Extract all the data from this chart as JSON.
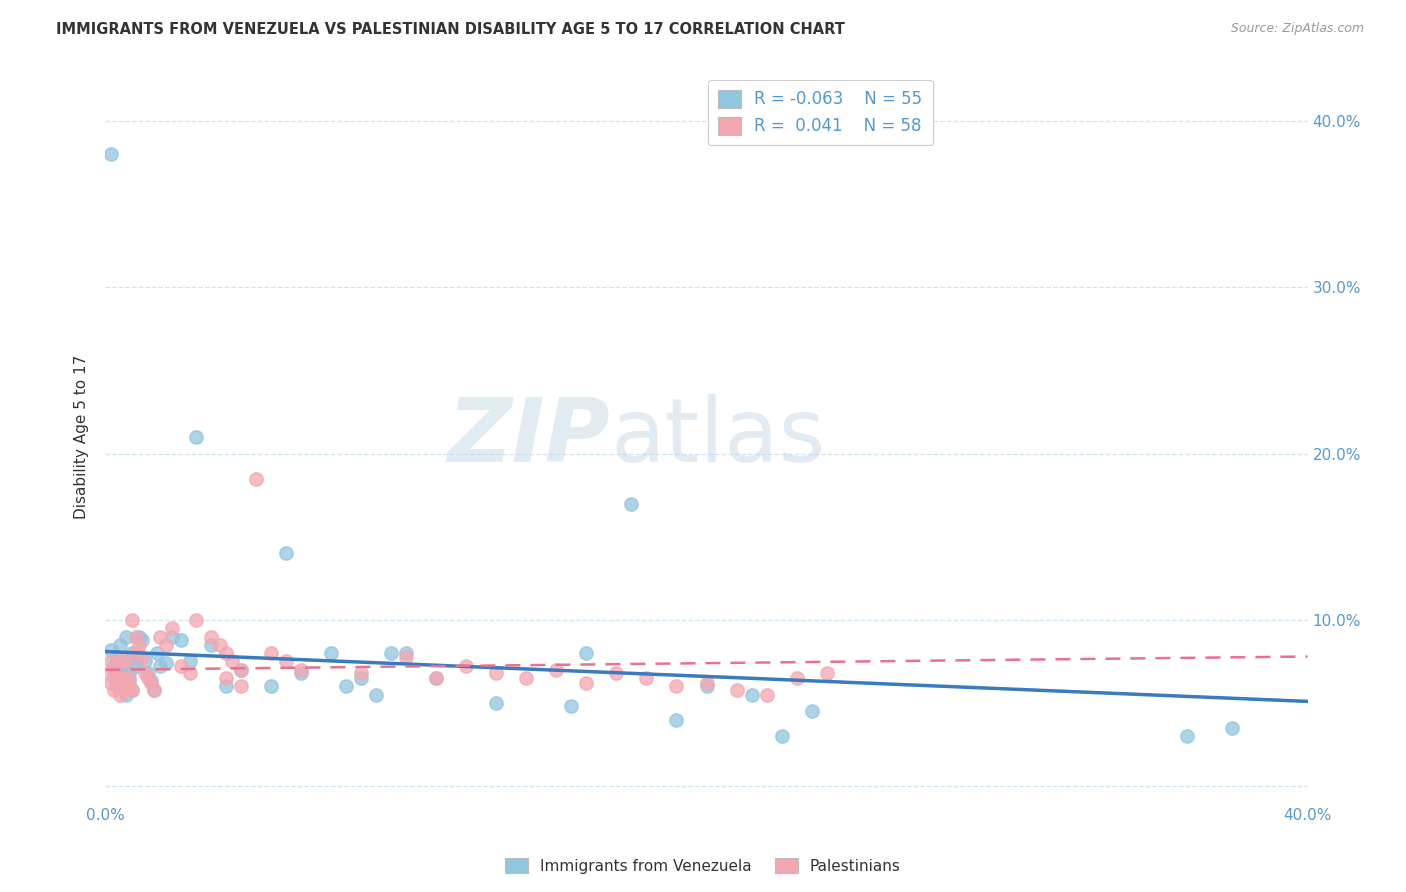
{
  "title": "IMMIGRANTS FROM VENEZUELA VS PALESTINIAN DISABILITY AGE 5 TO 17 CORRELATION CHART",
  "source": "Source: ZipAtlas.com",
  "ylabel": "Disability Age 5 to 17",
  "xlim": [
    0.0,
    0.4
  ],
  "ylim": [
    -0.01,
    0.43
  ],
  "color_blue": "#92c5de",
  "color_pink": "#f4a6b0",
  "trend_blue": "#3a7abf",
  "trend_pink": "#e87090",
  "watermark_zip": "ZIP",
  "watermark_atlas": "atlas",
  "venezuela_x": [
    0.0018,
    0.002,
    0.003,
    0.003,
    0.004,
    0.004,
    0.005,
    0.005,
    0.006,
    0.006,
    0.007,
    0.007,
    0.008,
    0.008,
    0.009,
    0.009,
    0.01,
    0.01,
    0.011,
    0.012,
    0.013,
    0.014,
    0.015,
    0.016,
    0.017,
    0.018,
    0.02,
    0.022,
    0.025,
    0.028,
    0.03,
    0.035,
    0.04,
    0.045,
    0.055,
    0.06,
    0.065,
    0.075,
    0.08,
    0.085,
    0.09,
    0.095,
    0.1,
    0.11,
    0.13,
    0.155,
    0.16,
    0.175,
    0.19,
    0.2,
    0.215,
    0.225,
    0.235,
    0.36,
    0.375
  ],
  "venezuela_y": [
    0.38,
    0.082,
    0.072,
    0.065,
    0.078,
    0.06,
    0.085,
    0.071,
    0.067,
    0.073,
    0.055,
    0.09,
    0.068,
    0.063,
    0.058,
    0.08,
    0.072,
    0.074,
    0.09,
    0.088,
    0.075,
    0.068,
    0.063,
    0.058,
    0.08,
    0.072,
    0.074,
    0.09,
    0.088,
    0.075,
    0.21,
    0.085,
    0.06,
    0.07,
    0.06,
    0.14,
    0.068,
    0.08,
    0.06,
    0.065,
    0.055,
    0.08,
    0.08,
    0.065,
    0.05,
    0.048,
    0.08,
    0.17,
    0.04,
    0.06,
    0.055,
    0.03,
    0.045,
    0.03,
    0.035
  ],
  "palestinian_x": [
    0.001,
    0.002,
    0.002,
    0.003,
    0.003,
    0.004,
    0.004,
    0.005,
    0.005,
    0.006,
    0.006,
    0.007,
    0.007,
    0.008,
    0.008,
    0.009,
    0.009,
    0.01,
    0.01,
    0.011,
    0.012,
    0.013,
    0.014,
    0.015,
    0.016,
    0.018,
    0.02,
    0.022,
    0.025,
    0.028,
    0.03,
    0.035,
    0.038,
    0.04,
    0.042,
    0.045,
    0.05,
    0.055,
    0.06,
    0.065,
    0.04,
    0.045,
    0.085,
    0.1,
    0.11,
    0.12,
    0.13,
    0.14,
    0.15,
    0.16,
    0.17,
    0.18,
    0.19,
    0.2,
    0.21,
    0.22,
    0.23,
    0.24
  ],
  "palestinian_y": [
    0.068,
    0.062,
    0.075,
    0.07,
    0.058,
    0.065,
    0.06,
    0.055,
    0.075,
    0.065,
    0.06,
    0.058,
    0.075,
    0.065,
    0.06,
    0.058,
    0.1,
    0.09,
    0.08,
    0.085,
    0.078,
    0.068,
    0.065,
    0.062,
    0.058,
    0.09,
    0.085,
    0.095,
    0.072,
    0.068,
    0.1,
    0.09,
    0.085,
    0.08,
    0.075,
    0.07,
    0.185,
    0.08,
    0.075,
    0.07,
    0.065,
    0.06,
    0.068,
    0.078,
    0.065,
    0.072,
    0.068,
    0.065,
    0.07,
    0.062,
    0.068,
    0.065,
    0.06,
    0.062,
    0.058,
    0.055,
    0.065,
    0.068
  ],
  "trend_blue_start": 0.081,
  "trend_blue_end": 0.051,
  "trend_pink_start": 0.07,
  "trend_pink_end": 0.078,
  "grid_color": "#d0e4f0",
  "tick_color": "#5599cc",
  "title_color": "#333333",
  "source_color": "#999999"
}
